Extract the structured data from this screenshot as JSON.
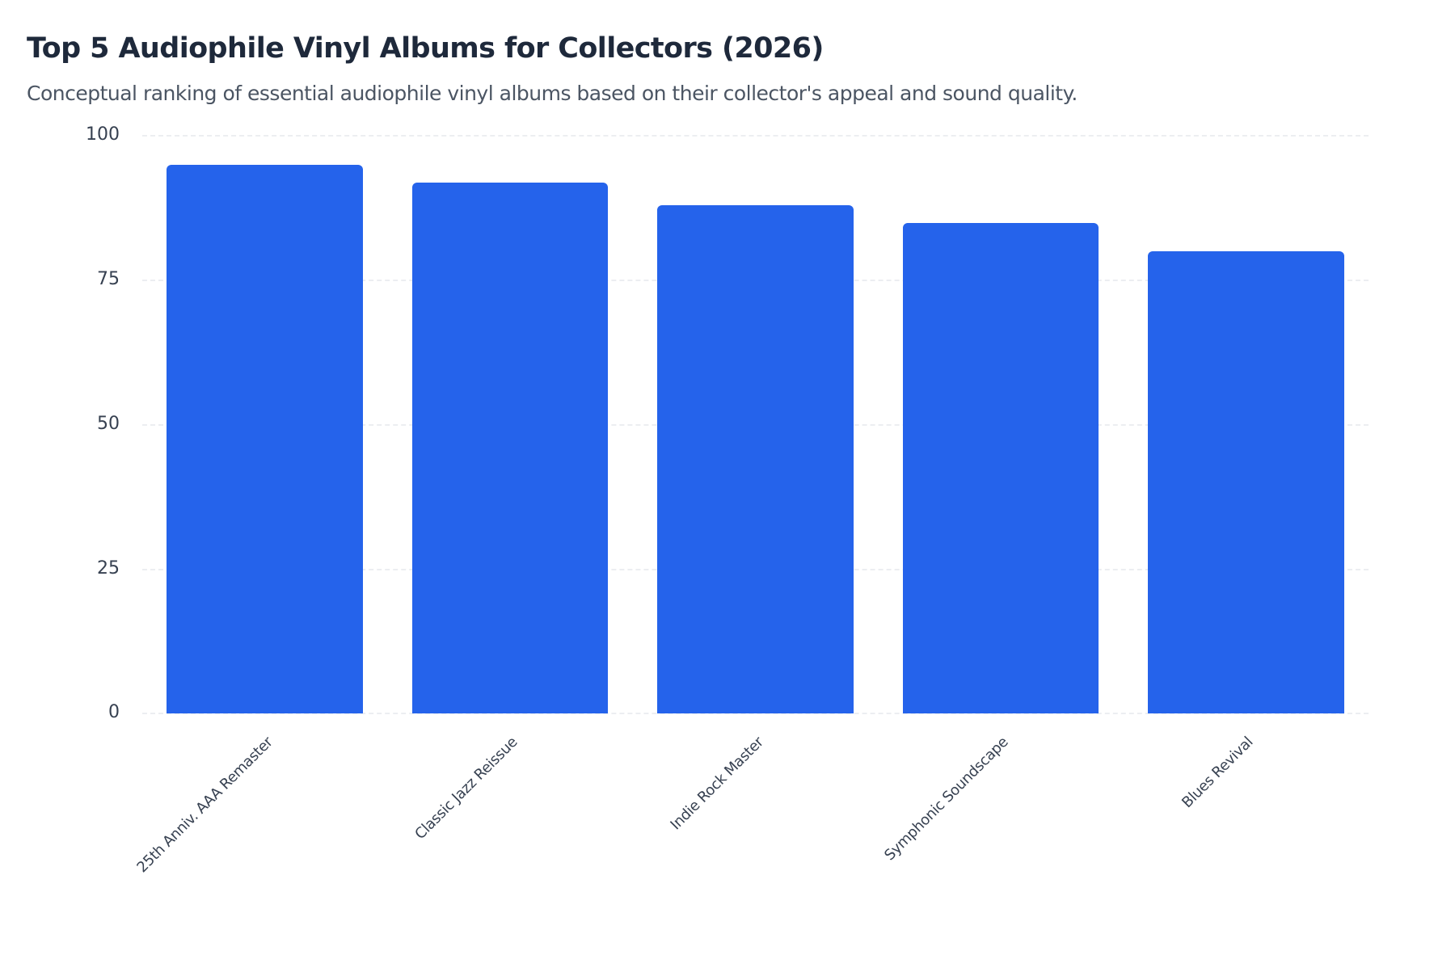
{
  "header": {
    "title": "Top 5 Audiophile Vinyl Albums for Collectors (2026)",
    "subtitle": "Conceptual ranking of essential audiophile vinyl albums based on their collector's appeal and sound quality."
  },
  "colors": {
    "bar": "#2563eb",
    "title": "#1e293b",
    "subtitle": "#4b5563",
    "axis_text": "#374151",
    "gridline": "#eceef1"
  },
  "chart_data": {
    "type": "bar",
    "title": "Top 5 Audiophile Vinyl Albums for Collectors (2026)",
    "subtitle": "Conceptual ranking of essential audiophile vinyl albums based on their collector's appeal and sound quality.",
    "categories": [
      "25th Anniv. AAA Remaster",
      "Classic Jazz Reissue",
      "Indie Rock Master",
      "Symphonic Soundscape",
      "Blues Revival"
    ],
    "values": [
      95,
      92,
      88,
      85,
      80
    ],
    "xlabel": "",
    "ylabel": "",
    "ylim": [
      0,
      100
    ],
    "yticks": [
      "0",
      "25",
      "50",
      "75",
      "100"
    ],
    "grid": true,
    "legend": null,
    "x_label_rotation": -45
  }
}
